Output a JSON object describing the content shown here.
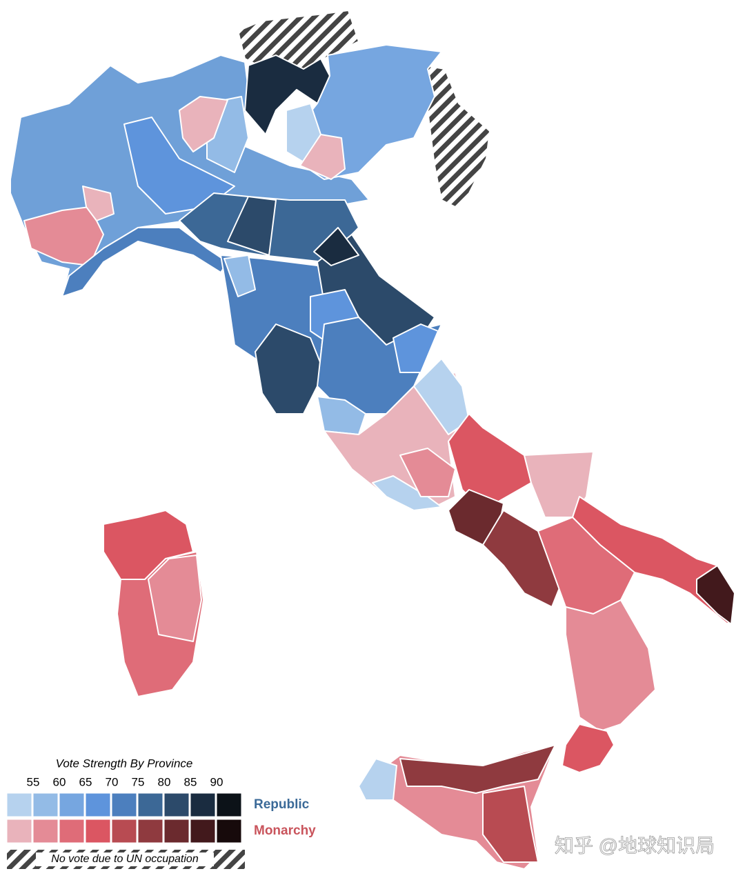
{
  "legend": {
    "title": "Vote Strength By Province",
    "ticks": [
      55,
      60,
      65,
      70,
      75,
      80,
      85,
      90
    ],
    "rows": [
      {
        "label": "Republic",
        "label_color": "#3b6a98",
        "colors": [
          "#b6d2ee",
          "#93bbe6",
          "#76a6e0",
          "#5e94dc",
          "#4c7fbe",
          "#3c6896",
          "#2c4a6a",
          "#1a2c40",
          "#0c1218"
        ]
      },
      {
        "label": "Monarchy",
        "label_color": "#c9545c",
        "colors": [
          "#e9b3bb",
          "#e48b96",
          "#df6c78",
          "#db5662",
          "#b84b52",
          "#8f3a3f",
          "#6b2a2e",
          "#42191c",
          "#170a0b"
        ]
      }
    ],
    "hatch_label": "No vote due to UN occupation"
  },
  "watermark": "知乎 @地球知识局"
}
